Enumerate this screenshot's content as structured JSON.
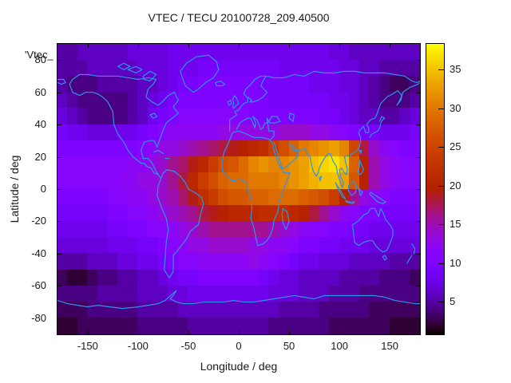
{
  "chart_data": {
    "type": "heatmap",
    "title": "VTEC / TECU 20100728_209.40500",
    "key_label": "'Vtec_",
    "xlabel": "Longitude / deg",
    "ylabel": "Latitude / deg",
    "xlim": [
      -180,
      180
    ],
    "ylim": [
      -90,
      90
    ],
    "xticks": [
      -150,
      -100,
      -50,
      0,
      50,
      100,
      150
    ],
    "yticks": [
      80,
      60,
      40,
      20,
      0,
      -20,
      -40,
      -60,
      -80
    ],
    "colorbar": {
      "ticks": [
        5,
        10,
        15,
        20,
        25,
        30,
        35
      ],
      "range": [
        0.8,
        38.3
      ],
      "palette_name": "gnuplot pm3d (black-violet-magenta-red-orange-yellow)",
      "palette_stops": [
        "#000000",
        "#5A00B4",
        "#8004FF",
        "#9B0DB4",
        "#B42000",
        "#CA3E00",
        "#DD6C00",
        "#EFAB00",
        "#FFFF00"
      ]
    },
    "colors": {
      "coastline": "#2f93e8",
      "plot_border": "#000000",
      "text": "#1a1a1a",
      "background": "#ffffff"
    },
    "grid": {
      "units": "TECU",
      "lon_start": -175,
      "lon_step": 10,
      "lat_start": 85,
      "lat_step": -10,
      "cols": 36,
      "rows": 18,
      "values": [
        [
          5,
          5,
          6,
          6,
          6,
          6,
          6,
          7,
          7,
          7,
          7,
          8,
          8,
          8,
          8,
          8,
          8,
          8,
          8,
          8,
          8,
          8,
          8,
          8,
          8,
          8,
          8,
          7,
          7,
          6,
          6,
          6,
          6,
          6,
          6,
          6
        ],
        [
          5,
          5,
          5,
          6,
          6,
          6,
          6,
          6,
          7,
          7,
          7,
          8,
          8,
          8,
          9,
          9,
          9,
          9,
          9,
          9,
          9,
          9,
          8,
          8,
          8,
          8,
          8,
          8,
          7,
          7,
          6,
          6,
          5,
          5,
          5,
          5
        ],
        [
          5,
          4,
          4,
          4,
          5,
          5,
          5,
          5,
          6,
          6,
          7,
          8,
          9,
          9,
          10,
          10,
          10,
          10,
          10,
          10,
          9,
          9,
          9,
          9,
          9,
          8,
          8,
          8,
          7,
          7,
          6,
          5,
          4,
          3,
          3,
          4
        ],
        [
          6,
          5,
          4,
          4,
          4,
          4,
          4,
          5,
          6,
          7,
          8,
          9,
          10,
          10,
          10,
          10,
          10,
          10,
          10,
          10,
          10,
          9,
          9,
          9,
          9,
          9,
          9,
          8,
          8,
          7,
          6,
          5,
          4,
          4,
          4,
          5
        ],
        [
          7,
          6,
          5,
          4,
          4,
          4,
          4,
          5,
          6,
          8,
          9,
          10,
          11,
          11,
          11,
          11,
          11,
          11,
          11,
          10,
          10,
          10,
          10,
          10,
          10,
          10,
          9,
          9,
          8,
          7,
          6,
          6,
          5,
          5,
          6,
          7
        ],
        [
          9,
          8,
          8,
          7,
          7,
          7,
          8,
          8,
          9,
          10,
          11,
          12,
          12,
          12,
          12,
          12,
          13,
          13,
          13,
          13,
          13,
          13,
          14,
          14,
          14,
          13,
          13,
          12,
          11,
          10,
          9,
          9,
          8,
          8,
          8,
          9
        ],
        [
          10,
          10,
          10,
          10,
          10,
          10,
          10,
          10,
          11,
          12,
          13,
          13,
          14,
          15,
          16,
          17,
          18,
          19,
          20,
          21,
          22,
          24,
          26,
          28,
          30,
          31,
          32,
          33,
          31,
          25,
          18,
          14,
          12,
          11,
          10,
          10
        ],
        [
          11,
          11,
          11,
          11,
          11,
          11,
          11,
          12,
          12,
          13,
          14,
          16,
          17,
          19,
          21,
          24,
          26,
          27,
          29,
          31,
          32,
          31,
          31,
          32,
          33,
          35,
          36,
          37,
          35,
          28,
          20,
          15,
          13,
          12,
          11,
          11
        ],
        [
          11,
          11,
          11,
          11,
          11,
          11,
          12,
          12,
          13,
          13,
          14,
          16,
          18,
          21,
          24,
          26,
          28,
          29,
          29,
          30,
          30,
          30,
          31,
          32,
          33,
          34,
          35,
          35,
          33,
          27,
          20,
          15,
          13,
          12,
          11,
          11
        ],
        [
          10,
          10,
          10,
          10,
          10,
          11,
          11,
          12,
          12,
          13,
          14,
          15,
          17,
          19,
          22,
          24,
          26,
          27,
          27,
          28,
          28,
          29,
          29,
          29,
          28,
          27,
          26,
          24,
          20,
          16,
          13,
          12,
          11,
          10,
          10,
          10
        ],
        [
          9,
          9,
          9,
          9,
          9,
          10,
          10,
          11,
          11,
          12,
          13,
          14,
          15,
          16,
          18,
          19,
          20,
          21,
          21,
          21,
          22,
          22,
          22,
          21,
          20,
          18,
          16,
          14,
          12,
          11,
          10,
          10,
          9,
          9,
          9,
          9
        ],
        [
          8,
          8,
          8,
          8,
          8,
          9,
          9,
          10,
          10,
          11,
          11,
          12,
          13,
          14,
          15,
          16,
          16,
          16,
          16,
          16,
          16,
          15,
          14,
          13,
          12,
          11,
          11,
          10,
          10,
          9,
          9,
          8,
          8,
          8,
          8,
          8
        ],
        [
          7,
          7,
          7,
          7,
          7,
          8,
          8,
          8,
          9,
          9,
          10,
          11,
          12,
          13,
          13,
          14,
          14,
          14,
          14,
          13,
          13,
          12,
          12,
          11,
          10,
          10,
          9,
          9,
          8,
          8,
          8,
          7,
          7,
          7,
          7,
          7
        ],
        [
          5,
          5,
          5,
          6,
          6,
          6,
          7,
          7,
          8,
          8,
          9,
          10,
          11,
          11,
          12,
          12,
          12,
          12,
          12,
          13,
          12,
          11,
          10,
          9,
          8,
          8,
          7,
          7,
          7,
          6,
          6,
          6,
          6,
          5,
          5,
          5
        ],
        [
          3,
          2,
          2,
          3,
          4,
          4,
          5,
          5,
          6,
          6,
          7,
          8,
          9,
          9,
          10,
          10,
          10,
          10,
          10,
          10,
          9,
          8,
          7,
          7,
          6,
          6,
          6,
          6,
          5,
          5,
          5,
          5,
          4,
          4,
          4,
          3
        ],
        [
          4,
          4,
          4,
          4,
          5,
          5,
          5,
          5,
          6,
          6,
          6,
          7,
          7,
          8,
          8,
          8,
          8,
          8,
          8,
          8,
          8,
          7,
          7,
          7,
          6,
          6,
          6,
          5,
          5,
          5,
          4,
          4,
          4,
          4,
          4,
          4
        ],
        [
          3,
          3,
          3,
          4,
          4,
          4,
          4,
          4,
          5,
          5,
          5,
          5,
          6,
          6,
          6,
          6,
          6,
          6,
          6,
          6,
          6,
          6,
          5,
          5,
          5,
          5,
          4,
          4,
          4,
          4,
          4,
          3,
          3,
          3,
          3,
          3
        ],
        [
          2,
          2,
          3,
          3,
          3,
          3,
          3,
          3,
          4,
          4,
          4,
          4,
          4,
          5,
          5,
          5,
          5,
          5,
          5,
          5,
          5,
          4,
          4,
          4,
          4,
          4,
          4,
          3,
          3,
          3,
          3,
          3,
          3,
          2,
          2,
          2
        ]
      ]
    }
  }
}
